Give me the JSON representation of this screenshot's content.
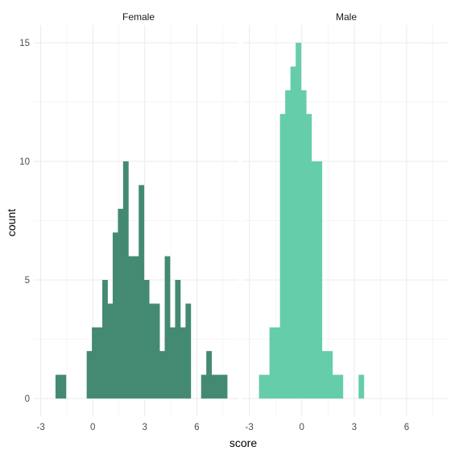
{
  "chart_data": {
    "type": "bar",
    "subtype": "faceted-histogram",
    "xlabel": "score",
    "ylabel": "count",
    "x_ticks": [
      "-3",
      "0",
      "3",
      "6"
    ],
    "y_ticks": [
      "0",
      "5",
      "10",
      "15"
    ],
    "ylim": [
      -0.75,
      15.75
    ],
    "grid": true,
    "bin_width": 0.3,
    "panels": [
      {
        "label": "Female",
        "color": "#448A73",
        "xlim": [
          -3.4,
          8.4
        ],
        "bins": [
          {
            "x": -2.0,
            "count": 1
          },
          {
            "x": -1.7,
            "count": 1
          },
          {
            "x": -0.2,
            "count": 2
          },
          {
            "x": 0.1,
            "count": 3
          },
          {
            "x": 0.4,
            "count": 3
          },
          {
            "x": 0.7,
            "count": 5
          },
          {
            "x": 1.0,
            "count": 4
          },
          {
            "x": 1.3,
            "count": 7
          },
          {
            "x": 1.6,
            "count": 8
          },
          {
            "x": 1.9,
            "count": 10
          },
          {
            "x": 2.2,
            "count": 6
          },
          {
            "x": 2.5,
            "count": 6
          },
          {
            "x": 2.8,
            "count": 9
          },
          {
            "x": 3.1,
            "count": 5
          },
          {
            "x": 3.4,
            "count": 4
          },
          {
            "x": 3.7,
            "count": 4
          },
          {
            "x": 4.0,
            "count": 2
          },
          {
            "x": 4.3,
            "count": 6
          },
          {
            "x": 4.6,
            "count": 3
          },
          {
            "x": 4.9,
            "count": 5
          },
          {
            "x": 5.2,
            "count": 3
          },
          {
            "x": 5.5,
            "count": 4
          },
          {
            "x": 6.4,
            "count": 1
          },
          {
            "x": 6.7,
            "count": 2
          },
          {
            "x": 7.0,
            "count": 1
          },
          {
            "x": 7.3,
            "count": 1
          },
          {
            "x": 7.6,
            "count": 1
          }
        ]
      },
      {
        "label": "Male",
        "color": "#66CDAA",
        "xlim": [
          -3.4,
          8.4
        ],
        "bins": [
          {
            "x": -2.3,
            "count": 1
          },
          {
            "x": -2.0,
            "count": 1
          },
          {
            "x": -1.7,
            "count": 3
          },
          {
            "x": -1.4,
            "count": 3
          },
          {
            "x": -1.1,
            "count": 12
          },
          {
            "x": -0.8,
            "count": 13
          },
          {
            "x": -0.5,
            "count": 14
          },
          {
            "x": -0.2,
            "count": 15
          },
          {
            "x": 0.1,
            "count": 13
          },
          {
            "x": 0.4,
            "count": 12
          },
          {
            "x": 0.7,
            "count": 10
          },
          {
            "x": 1.0,
            "count": 10
          },
          {
            "x": 1.3,
            "count": 2
          },
          {
            "x": 1.6,
            "count": 2
          },
          {
            "x": 1.9,
            "count": 1
          },
          {
            "x": 2.2,
            "count": 1
          },
          {
            "x": 3.4,
            "count": 1
          }
        ]
      }
    ]
  }
}
